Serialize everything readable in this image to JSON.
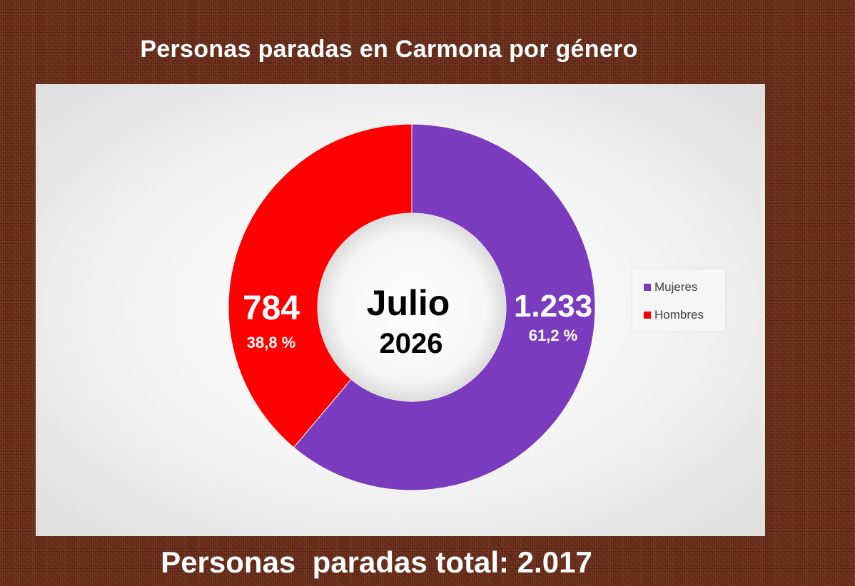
{
  "title": "Personas paradas en Carmona por género",
  "center": {
    "month": "Julio",
    "year": "2026"
  },
  "footer": "Personas  paradas total: 2.017",
  "chart_data": {
    "type": "pie",
    "style": "donut",
    "start_angle_deg": 0,
    "direction": "clockwise",
    "legend_position": "right",
    "series": [
      {
        "name": "Mujeres",
        "value_label": "1.233",
        "percent_label": "61,2 %",
        "value": 1233,
        "percent": 61.2,
        "color": "#7b3bbf"
      },
      {
        "name": "Hombres",
        "value_label": "784",
        "percent_label": "38,8 %",
        "value": 784,
        "percent": 38.8,
        "color": "#ff0000"
      }
    ]
  }
}
